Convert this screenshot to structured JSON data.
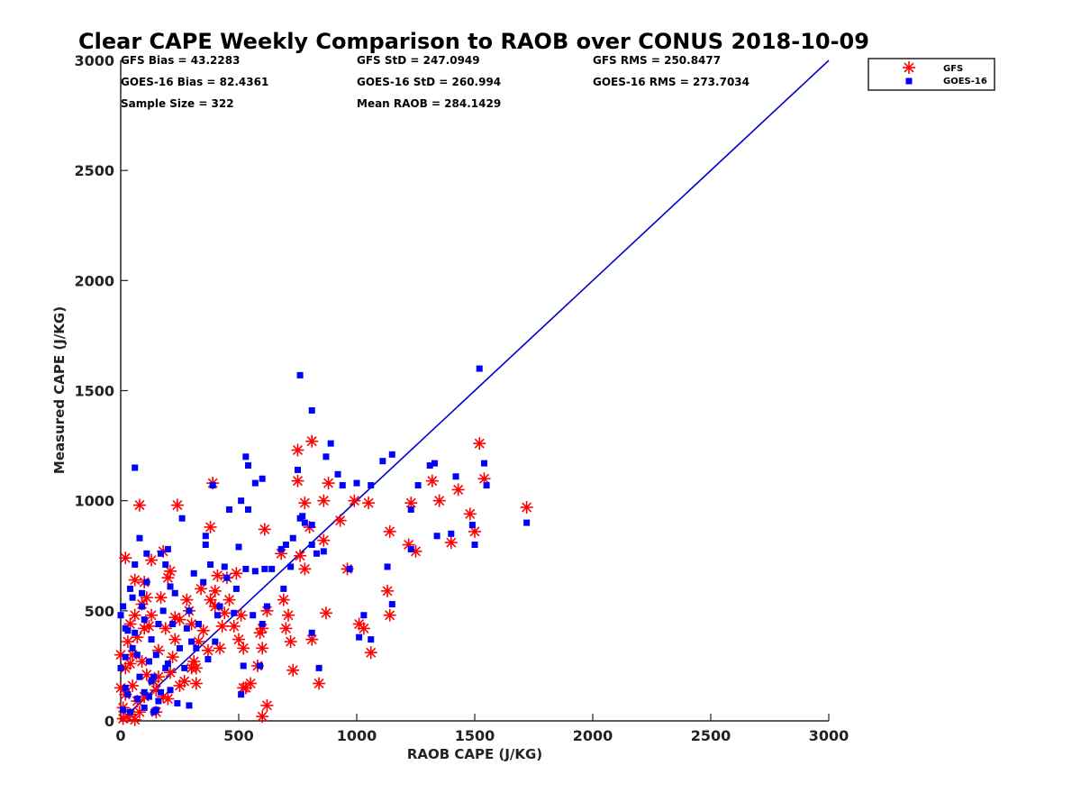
{
  "chart_data": {
    "type": "scatter",
    "title": "Clear CAPE Weekly Comparison to RAOB over CONUS 2018-10-09",
    "xlabel": "RAOB CAPE (J/KG)",
    "ylabel": "Measured CAPE (J/KG)",
    "xlim": [
      0,
      3000
    ],
    "ylim": [
      0,
      3000
    ],
    "xticks": [
      "0",
      "500",
      "1000",
      "1500",
      "2000",
      "2500",
      "3000"
    ],
    "yticks": [
      "0",
      "500",
      "1000",
      "1500",
      "2000",
      "2500",
      "3000"
    ],
    "grid": false,
    "legend_position": "top-right",
    "stats": [
      [
        "GFS Bias = 43.2283",
        "GFS StD = 247.0949",
        "GFS RMS = 250.8477"
      ],
      [
        "GOES-16 Bias = 82.4361",
        "GOES-16 StD = 260.994",
        "GOES-16 RMS = 273.7034"
      ],
      [
        "Sample Size = 322",
        "Mean RAOB = 284.1429",
        ""
      ]
    ],
    "reference_line": {
      "x": [
        0,
        3000
      ],
      "y": [
        0,
        3000
      ],
      "color": "#0000cc"
    },
    "series": [
      {
        "name": "GFS",
        "marker": "asterisk",
        "color": "#ff0000",
        "points": [
          [
            1520,
            1260
          ],
          [
            1540,
            1100
          ],
          [
            1720,
            970
          ],
          [
            1480,
            940
          ],
          [
            1500,
            860
          ],
          [
            1430,
            1050
          ],
          [
            1400,
            810
          ],
          [
            1350,
            1000
          ],
          [
            1320,
            1090
          ],
          [
            1250,
            770
          ],
          [
            1230,
            990
          ],
          [
            1220,
            800
          ],
          [
            1140,
            860
          ],
          [
            1130,
            590
          ],
          [
            1140,
            480
          ],
          [
            1060,
            310
          ],
          [
            1050,
            990
          ],
          [
            1030,
            420
          ],
          [
            1010,
            440
          ],
          [
            990,
            1000
          ],
          [
            960,
            690
          ],
          [
            930,
            910
          ],
          [
            880,
            1080
          ],
          [
            860,
            1000
          ],
          [
            860,
            820
          ],
          [
            870,
            490
          ],
          [
            810,
            370
          ],
          [
            840,
            170
          ],
          [
            810,
            1270
          ],
          [
            800,
            880
          ],
          [
            780,
            990
          ],
          [
            780,
            690
          ],
          [
            760,
            750
          ],
          [
            750,
            1230
          ],
          [
            750,
            1090
          ],
          [
            720,
            360
          ],
          [
            710,
            480
          ],
          [
            700,
            420
          ],
          [
            730,
            230
          ],
          [
            690,
            550
          ],
          [
            680,
            760
          ],
          [
            620,
            500
          ],
          [
            610,
            870
          ],
          [
            600,
            420
          ],
          [
            590,
            400
          ],
          [
            600,
            330
          ],
          [
            580,
            250
          ],
          [
            550,
            170
          ],
          [
            530,
            150
          ],
          [
            520,
            330
          ],
          [
            510,
            480
          ],
          [
            500,
            370
          ],
          [
            490,
            670
          ],
          [
            480,
            430
          ],
          [
            460,
            550
          ],
          [
            450,
            650
          ],
          [
            440,
            490
          ],
          [
            430,
            430
          ],
          [
            420,
            330
          ],
          [
            410,
            660
          ],
          [
            400,
            520
          ],
          [
            400,
            590
          ],
          [
            390,
            1080
          ],
          [
            380,
            550
          ],
          [
            380,
            880
          ],
          [
            370,
            320
          ],
          [
            350,
            410
          ],
          [
            340,
            600
          ],
          [
            330,
            360
          ],
          [
            320,
            240
          ],
          [
            310,
            270
          ],
          [
            300,
            440
          ],
          [
            290,
            500
          ],
          [
            280,
            550
          ],
          [
            270,
            180
          ],
          [
            250,
            460
          ],
          [
            240,
            980
          ],
          [
            230,
            470
          ],
          [
            230,
            370
          ],
          [
            220,
            290
          ],
          [
            210,
            680
          ],
          [
            200,
            650
          ],
          [
            190,
            420
          ],
          [
            180,
            770
          ],
          [
            170,
            560
          ],
          [
            160,
            320
          ],
          [
            150,
            140
          ],
          [
            130,
            480
          ],
          [
            120,
            430
          ],
          [
            110,
            560
          ],
          [
            100,
            630
          ],
          [
            90,
            530
          ],
          [
            90,
            270
          ],
          [
            80,
            980
          ],
          [
            70,
            380
          ],
          [
            60,
            480
          ],
          [
            50,
            160
          ],
          [
            40,
            260
          ],
          [
            30,
            360
          ],
          [
            20,
            740
          ],
          [
            20,
            120
          ],
          [
            10,
            60
          ],
          [
            40,
            30
          ],
          [
            70,
            90
          ],
          [
            110,
            210
          ],
          [
            140,
            180
          ],
          [
            180,
            110
          ],
          [
            210,
            220
          ],
          [
            60,
            640
          ],
          [
            100,
            420
          ],
          [
            130,
            730
          ],
          [
            40,
            440
          ],
          [
            20,
            240
          ],
          [
            10,
            10
          ],
          [
            60,
            5
          ],
          [
            150,
            40
          ],
          [
            250,
            160
          ],
          [
            300,
            240
          ],
          [
            320,
            170
          ],
          [
            600,
            20
          ],
          [
            620,
            70
          ],
          [
            520,
            150
          ],
          [
            30,
            20
          ],
          [
            80,
            40
          ],
          [
            100,
            110
          ],
          [
            50,
            300
          ],
          [
            160,
            200
          ],
          [
            200,
            100
          ],
          [
            0,
            150
          ],
          [
            0,
            300
          ]
        ]
      },
      {
        "name": "GOES-16",
        "marker": "square",
        "color": "#0000ff",
        "points": [
          [
            1520,
            1600
          ],
          [
            1540,
            1170
          ],
          [
            1550,
            1070
          ],
          [
            1720,
            900
          ],
          [
            1500,
            800
          ],
          [
            1490,
            890
          ],
          [
            1420,
            1110
          ],
          [
            1400,
            850
          ],
          [
            1340,
            840
          ],
          [
            1330,
            1170
          ],
          [
            1310,
            1160
          ],
          [
            1260,
            1070
          ],
          [
            1230,
            960
          ],
          [
            1230,
            780
          ],
          [
            1150,
            1210
          ],
          [
            1150,
            530
          ],
          [
            1130,
            700
          ],
          [
            1110,
            1180
          ],
          [
            1060,
            1070
          ],
          [
            1060,
            370
          ],
          [
            1030,
            480
          ],
          [
            1010,
            380
          ],
          [
            1000,
            1080
          ],
          [
            970,
            690
          ],
          [
            940,
            1070
          ],
          [
            920,
            1120
          ],
          [
            890,
            1260
          ],
          [
            870,
            1200
          ],
          [
            860,
            770
          ],
          [
            840,
            240
          ],
          [
            830,
            760
          ],
          [
            810,
            1410
          ],
          [
            810,
            890
          ],
          [
            810,
            800
          ],
          [
            810,
            400
          ],
          [
            780,
            900
          ],
          [
            770,
            930
          ],
          [
            760,
            1570
          ],
          [
            760,
            920
          ],
          [
            750,
            1140
          ],
          [
            730,
            830
          ],
          [
            720,
            700
          ],
          [
            700,
            800
          ],
          [
            690,
            600
          ],
          [
            680,
            780
          ],
          [
            640,
            690
          ],
          [
            620,
            520
          ],
          [
            610,
            690
          ],
          [
            600,
            1100
          ],
          [
            600,
            440
          ],
          [
            590,
            250
          ],
          [
            570,
            1080
          ],
          [
            570,
            680
          ],
          [
            560,
            480
          ],
          [
            540,
            1160
          ],
          [
            540,
            960
          ],
          [
            530,
            1200
          ],
          [
            530,
            690
          ],
          [
            520,
            250
          ],
          [
            510,
            120
          ],
          [
            510,
            1000
          ],
          [
            500,
            790
          ],
          [
            490,
            600
          ],
          [
            480,
            490
          ],
          [
            460,
            960
          ],
          [
            450,
            650
          ],
          [
            440,
            700
          ],
          [
            420,
            520
          ],
          [
            410,
            480
          ],
          [
            400,
            360
          ],
          [
            390,
            1070
          ],
          [
            380,
            710
          ],
          [
            370,
            280
          ],
          [
            360,
            840
          ],
          [
            360,
            800
          ],
          [
            350,
            630
          ],
          [
            330,
            440
          ],
          [
            320,
            330
          ],
          [
            310,
            670
          ],
          [
            300,
            360
          ],
          [
            290,
            500
          ],
          [
            280,
            420
          ],
          [
            270,
            240
          ],
          [
            260,
            920
          ],
          [
            250,
            330
          ],
          [
            230,
            580
          ],
          [
            220,
            440
          ],
          [
            210,
            610
          ],
          [
            200,
            780
          ],
          [
            190,
            710
          ],
          [
            180,
            500
          ],
          [
            170,
            760
          ],
          [
            160,
            440
          ],
          [
            150,
            300
          ],
          [
            140,
            200
          ],
          [
            130,
            370
          ],
          [
            120,
            270
          ],
          [
            110,
            760
          ],
          [
            100,
            460
          ],
          [
            90,
            580
          ],
          [
            80,
            830
          ],
          [
            60,
            1150
          ],
          [
            60,
            710
          ],
          [
            50,
            560
          ],
          [
            40,
            600
          ],
          [
            30,
            410
          ],
          [
            20,
            290
          ],
          [
            20,
            150
          ],
          [
            10,
            520
          ],
          [
            10,
            50
          ],
          [
            70,
            100
          ],
          [
            100,
            130
          ],
          [
            130,
            180
          ],
          [
            160,
            90
          ],
          [
            190,
            240
          ],
          [
            240,
            80
          ],
          [
            290,
            70
          ],
          [
            50,
            330
          ],
          [
            60,
            400
          ],
          [
            90,
            520
          ],
          [
            110,
            630
          ],
          [
            30,
            120
          ],
          [
            80,
            200
          ],
          [
            100,
            60
          ],
          [
            140,
            40
          ],
          [
            170,
            130
          ],
          [
            40,
            40
          ],
          [
            20,
            420
          ],
          [
            0,
            480
          ],
          [
            0,
            240
          ],
          [
            120,
            110
          ],
          [
            70,
            300
          ],
          [
            150,
            50
          ],
          [
            210,
            140
          ],
          [
            200,
            260
          ]
        ]
      }
    ]
  }
}
